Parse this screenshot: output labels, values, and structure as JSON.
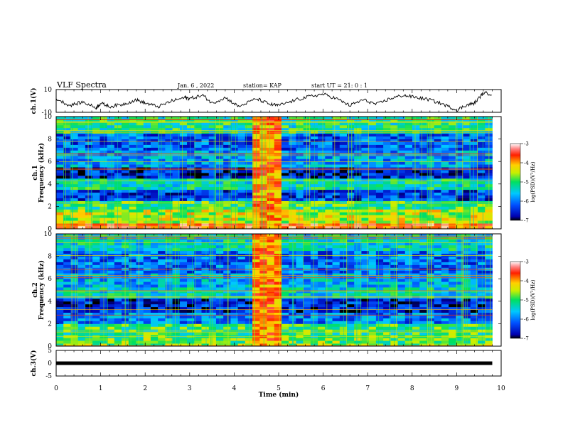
{
  "header": {
    "title": "VLF Spectra",
    "date": "Jan. 6 , 2022",
    "station": "station= KAP",
    "start": "start UT = 21: 0 : 1"
  },
  "chart_data": [
    {
      "type": "line",
      "panel": "ch1-waveform",
      "ylabel": "ch.1(V)",
      "xlim": [
        0,
        10
      ],
      "ylim": [
        -10,
        10
      ],
      "yticks": [
        "10",
        "-10"
      ],
      "series": [
        {
          "x": [
            0,
            0.3,
            0.6,
            0.9,
            1.0,
            1.2,
            1.5,
            1.8,
            2.0,
            2.3,
            2.6,
            2.9,
            3.0,
            3.3,
            3.5,
            3.8,
            4.1,
            4.5,
            4.8,
            5.0,
            5.4,
            5.7,
            6.0,
            6.3,
            6.6,
            6.9,
            7.2,
            7.5,
            7.8,
            8.1,
            8.4,
            8.7,
            9.0,
            9.2,
            9.4,
            9.6,
            9.8
          ],
          "values": [
            2,
            -4,
            -1,
            -6,
            -2,
            -5,
            -3,
            1,
            -2,
            -5,
            0,
            3,
            2,
            5,
            -2,
            3,
            -5,
            2,
            -3,
            -4,
            1,
            4,
            6,
            2,
            -4,
            1,
            -3,
            2,
            5,
            3,
            1,
            -3,
            -8,
            -4,
            -2,
            7,
            6
          ]
        }
      ]
    },
    {
      "type": "heatmap",
      "panel": "ch1-spectrogram",
      "ylabel": "ch.1\nFrequency (kHz)",
      "xlim": [
        0,
        9.8
      ],
      "ylim": [
        0,
        10
      ],
      "yticks": [
        "0",
        "2",
        "4",
        "6",
        "8",
        "10"
      ],
      "colorbar": {
        "label": "log(PSD)(V²/Hz)",
        "ticks": [
          "-3",
          "-4",
          "-5",
          "-6",
          "-7"
        ],
        "range": [
          -7,
          -3
        ]
      },
      "burst": {
        "x_start": 4.45,
        "x_end": 5.1
      },
      "bands": [
        {
          "f_min": 0,
          "f_max": 0.5,
          "level": -3.6
        },
        {
          "f_min": 0.5,
          "f_max": 1.7,
          "level": -4.5
        },
        {
          "f_min": 1.7,
          "f_max": 2.6,
          "level": -5.0
        },
        {
          "f_min": 2.6,
          "f_max": 3.6,
          "level": -6.3
        },
        {
          "f_min": 3.6,
          "f_max": 4.6,
          "level": -5.3
        },
        {
          "f_min": 4.6,
          "f_max": 5.6,
          "level": -6.5
        },
        {
          "f_min": 5.6,
          "f_max": 7.0,
          "level": -5.8
        },
        {
          "f_min": 7.0,
          "f_max": 8.6,
          "level": -6.2
        },
        {
          "f_min": 8.6,
          "f_max": 10,
          "level": -5.2
        }
      ]
    },
    {
      "type": "heatmap",
      "panel": "ch2-spectrogram",
      "ylabel": "ch.2\nFrequency (kHz)",
      "xlim": [
        0,
        9.8
      ],
      "ylim": [
        0,
        10
      ],
      "yticks": [
        "0",
        "2",
        "4",
        "6",
        "8",
        "10"
      ],
      "colorbar": {
        "label": "log(PSD)(V²/Hz)",
        "ticks": [
          "-3",
          "-4",
          "-5",
          "-6",
          "-7"
        ],
        "range": [
          -7,
          -3
        ]
      },
      "burst": {
        "x_start": 4.45,
        "x_end": 5.1
      },
      "bands": [
        {
          "f_min": 0,
          "f_max": 0.8,
          "level": -4.8
        },
        {
          "f_min": 0.8,
          "f_max": 1.9,
          "level": -5.0
        },
        {
          "f_min": 1.9,
          "f_max": 3.1,
          "level": -6.0
        },
        {
          "f_min": 3.1,
          "f_max": 4.2,
          "level": -6.5
        },
        {
          "f_min": 4.2,
          "f_max": 5.2,
          "level": -5.4
        },
        {
          "f_min": 5.2,
          "f_max": 6.6,
          "level": -5.7
        },
        {
          "f_min": 6.6,
          "f_max": 8.4,
          "level": -6.1
        },
        {
          "f_min": 8.4,
          "f_max": 10,
          "level": -5.4
        }
      ]
    },
    {
      "type": "line",
      "panel": "ch3-waveform",
      "ylabel": "ch.3(V)",
      "xlabel": "Time (min)",
      "xlim": [
        0,
        10
      ],
      "ylim": [
        -5,
        5
      ],
      "yticks": [
        "5",
        "0",
        "-5"
      ],
      "xticks": [
        "0",
        "1",
        "2",
        "3",
        "4",
        "5",
        "6",
        "7",
        "8",
        "9",
        "10"
      ],
      "series": [
        {
          "x": [
            0,
            9.8
          ],
          "values": [
            0,
            0
          ]
        }
      ]
    }
  ]
}
